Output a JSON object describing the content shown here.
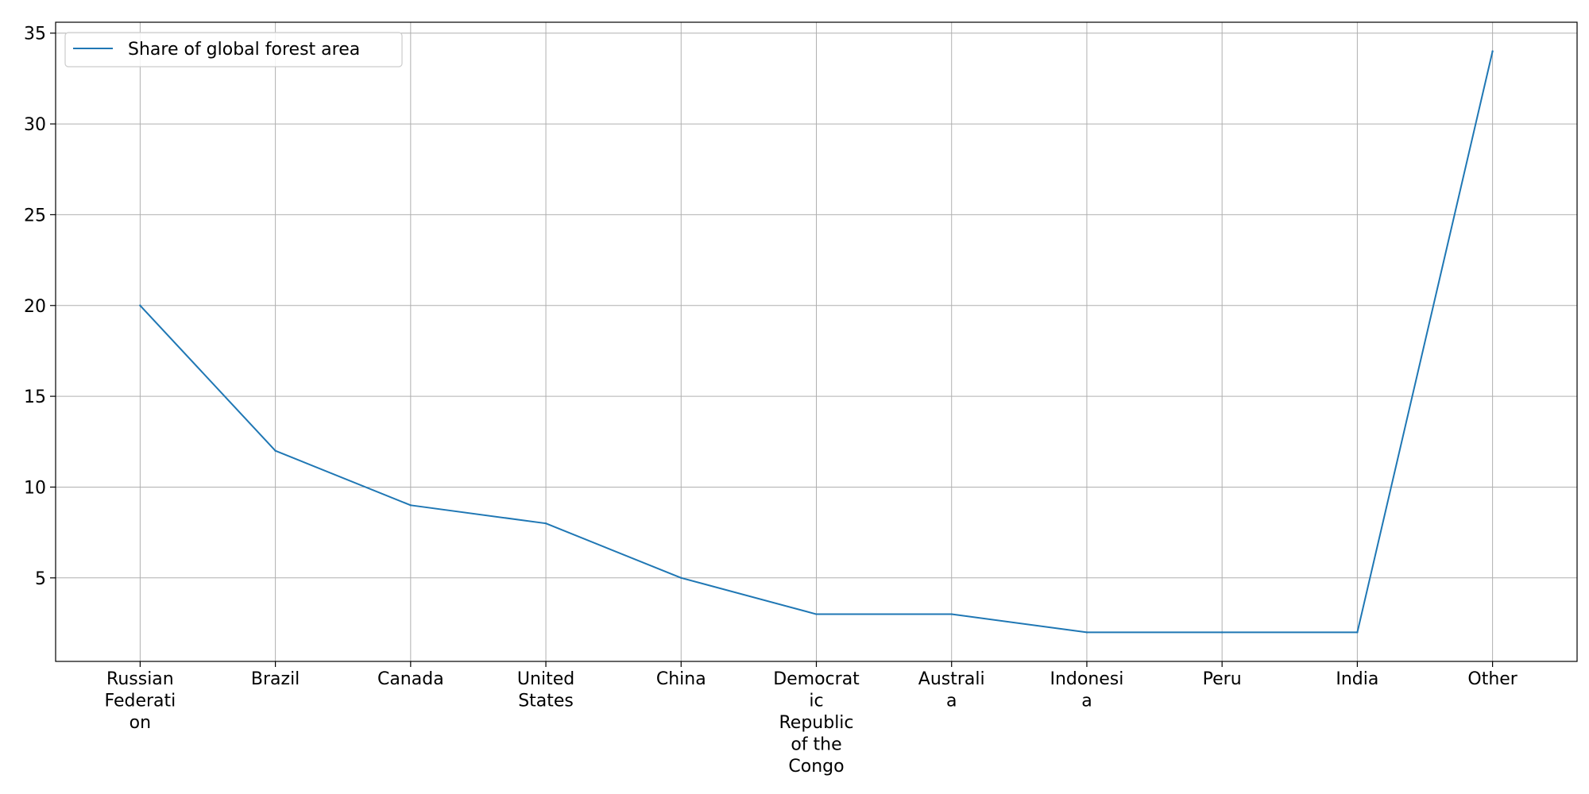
{
  "chart_data": {
    "type": "line",
    "categories": [
      [
        "Russian",
        "Federati",
        "on"
      ],
      [
        "Brazil"
      ],
      [
        "Canada"
      ],
      [
        "United",
        "States"
      ],
      [
        "China"
      ],
      [
        "Democrat",
        "ic",
        "Republic",
        "of the",
        "Congo"
      ],
      [
        "Australi",
        "a"
      ],
      [
        "Indonesi",
        "a"
      ],
      [
        "Peru"
      ],
      [
        "India"
      ],
      [
        "Other"
      ]
    ],
    "series": [
      {
        "name": "Share of global forest area",
        "color": "#1f77b4",
        "values": [
          20,
          12,
          9,
          8,
          5,
          3,
          3,
          2,
          2,
          2,
          34
        ]
      }
    ],
    "ylim": [
      0.4,
      35.6
    ],
    "yticks": [
      5,
      10,
      15,
      20,
      25,
      30,
      35
    ],
    "grid": true,
    "legend_position": "top-left",
    "xlabel": "",
    "ylabel": "",
    "title": ""
  }
}
